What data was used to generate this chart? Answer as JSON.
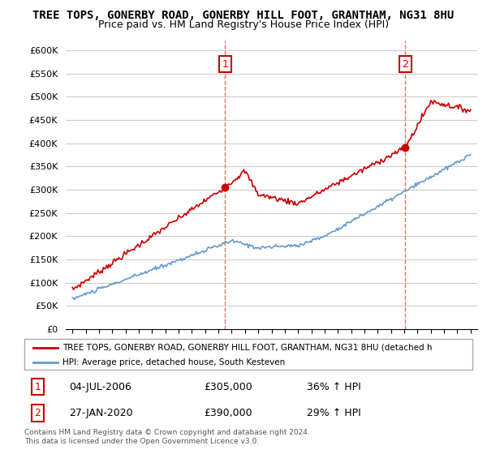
{
  "title": "TREE TOPS, GONERBY ROAD, GONERBY HILL FOOT, GRANTHAM, NG31 8HU",
  "subtitle": "Price paid vs. HM Land Registry's House Price Index (HPI)",
  "title_fontsize": 10,
  "subtitle_fontsize": 9,
  "ylabel_ticks": [
    "£0",
    "£50K",
    "£100K",
    "£150K",
    "£200K",
    "£250K",
    "£300K",
    "£350K",
    "£400K",
    "£450K",
    "£500K",
    "£550K",
    "£600K"
  ],
  "ytick_values": [
    0,
    50000,
    100000,
    150000,
    200000,
    250000,
    300000,
    350000,
    400000,
    450000,
    500000,
    550000,
    600000
  ],
  "ylim": [
    0,
    620000
  ],
  "sale1_x": 2006.5,
  "sale1_y": 305000,
  "sale1_label": "1",
  "sale2_x": 2020.08,
  "sale2_y": 390000,
  "sale2_label": "2",
  "red_color": "#cc0000",
  "blue_color": "#6699cc",
  "vline_color": "#ff6666",
  "legend1_text": "TREE TOPS, GONERBY ROAD, GONERBY HILL FOOT, GRANTHAM, NG31 8HU (detached h",
  "legend2_text": "HPI: Average price, detached house, South Kesteven",
  "table_row1": [
    "1",
    "04-JUL-2006",
    "£305,000",
    "36% ↑ HPI"
  ],
  "table_row2": [
    "2",
    "27-JAN-2020",
    "£390,000",
    "29% ↑ HPI"
  ],
  "footnote1": "Contains HM Land Registry data © Crown copyright and database right 2024.",
  "footnote2": "This data is licensed under the Open Government Licence v3.0.",
  "xmin": 1994.5,
  "xmax": 2025.5
}
